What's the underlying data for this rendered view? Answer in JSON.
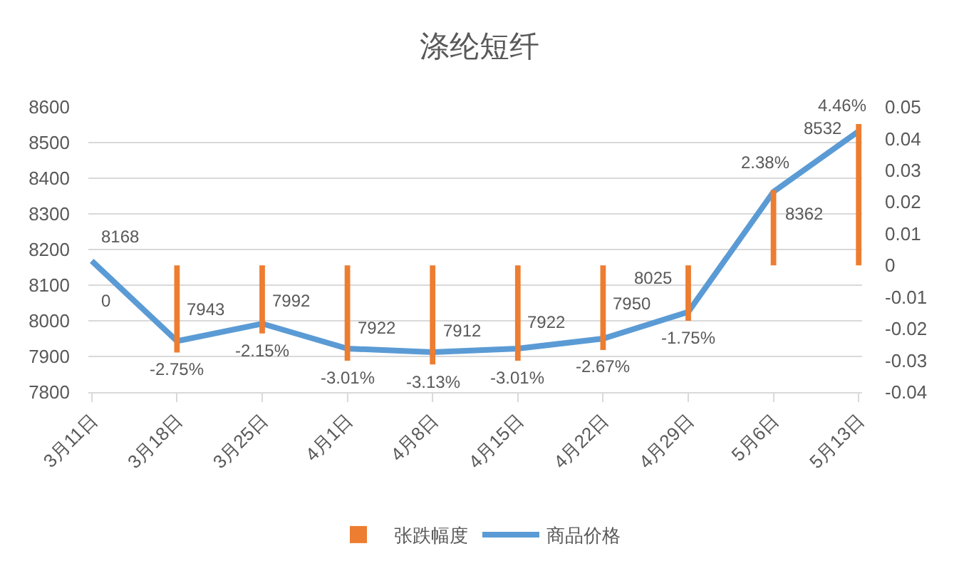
{
  "chart_data": {
    "type": "bar",
    "title": "涤纶短纤",
    "categories": [
      "3月11日",
      "3月18日",
      "3月25日",
      "4月1日",
      "4月8日",
      "4月15日",
      "4月22日",
      "4月29日",
      "5月6日",
      "5月13日"
    ],
    "series": [
      {
        "name": "张跌幅度",
        "axis": "y2",
        "color": "#ed7d31",
        "values": [
          0,
          -0.0275,
          -0.0215,
          -0.0301,
          -0.0313,
          -0.0301,
          -0.0267,
          -0.0175,
          0.0238,
          0.0446
        ],
        "value_labels": [
          "0",
          "-2.75%",
          "-2.15%",
          "-3.01%",
          "-3.13%",
          "-3.01%",
          "-2.67%",
          "-1.75%",
          "2.38%",
          "4.46%"
        ]
      },
      {
        "name": "商品价格",
        "type": "line",
        "color": "#5b9bd5",
        "values": [
          8168,
          7943,
          7992,
          7922,
          7912,
          7922,
          7950,
          8025,
          8362,
          8532
        ],
        "value_labels": [
          "8168",
          "7943",
          "7992",
          "7922",
          "7912",
          "7922",
          "7950",
          "8025",
          "8362",
          "8532"
        ]
      }
    ],
    "ylim": [
      7800,
      8600
    ],
    "yticks": [
      7800,
      7900,
      8000,
      8100,
      8200,
      8300,
      8400,
      8500,
      8600
    ],
    "y2lim": [
      -0.04,
      0.05
    ],
    "y2ticks": [
      -0.04,
      -0.03,
      -0.02,
      -0.01,
      0,
      0.01,
      0.02,
      0.03,
      0.04,
      0.05
    ],
    "grid": "y",
    "legend": "bottom"
  }
}
